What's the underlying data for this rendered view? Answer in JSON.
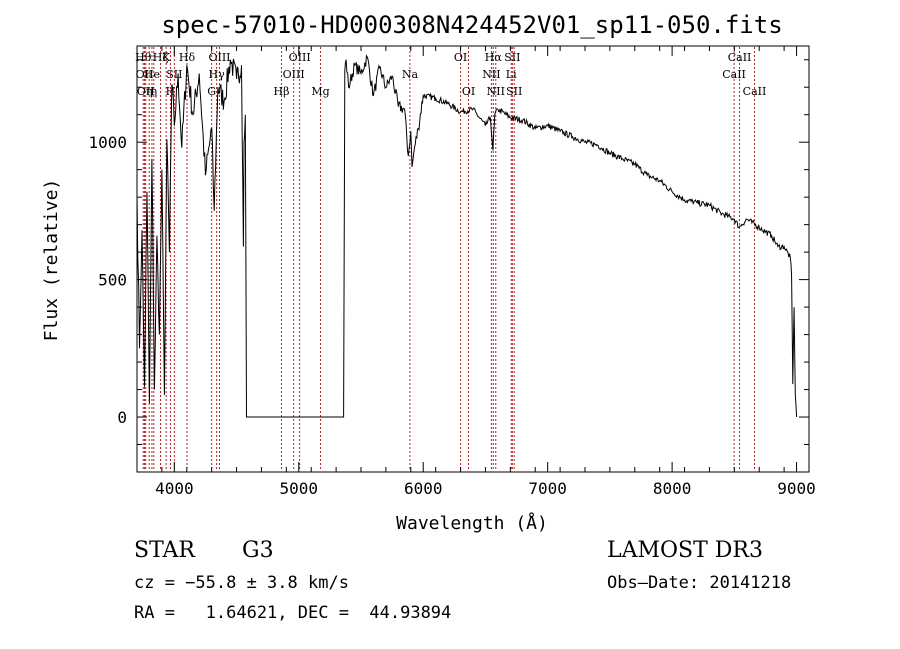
{
  "chart_data": {
    "type": "line",
    "title": "spec-57010-HD000308N424452V01_sp11-050.fits",
    "xlabel": "Wavelength (Å)",
    "ylabel": "Flux (relative)",
    "xlim": [
      3700,
      9100
    ],
    "ylim": [
      -200,
      1350
    ],
    "xticks": [
      4000,
      5000,
      6000,
      7000,
      8000,
      9000
    ],
    "xtick_labels": [
      "4000",
      "5000",
      "6000",
      "7000",
      "8000",
      "9000"
    ],
    "yticks": [
      0,
      500,
      1000
    ],
    "ytick_labels": [
      "0",
      "500",
      "1000"
    ],
    "grid": false,
    "series": [
      {
        "name": "flux",
        "x": [
          3700,
          3720,
          3740,
          3760,
          3780,
          3800,
          3820,
          3840,
          3860,
          3880,
          3900,
          3920,
          3940,
          3960,
          3980,
          4000,
          4030,
          4060,
          4100,
          4150,
          4200,
          4250,
          4300,
          4320,
          4350,
          4400,
          4450,
          4500,
          4540,
          4555,
          4560,
          4570,
          4580,
          5350,
          5360,
          5370,
          5380,
          5400,
          5450,
          5500,
          5550,
          5600,
          5650,
          5700,
          5750,
          5800,
          5850,
          5880,
          5900,
          5910,
          5930,
          5960,
          6000,
          6100,
          6200,
          6300,
          6400,
          6500,
          6540,
          6560,
          6575,
          6600,
          6700,
          6800,
          6900,
          7000,
          7100,
          7200,
          7300,
          7400,
          7500,
          7600,
          7700,
          7800,
          7900,
          8000,
          8100,
          8200,
          8300,
          8400,
          8500,
          8540,
          8560,
          8600,
          8700,
          8800,
          8850,
          8900,
          8950,
          8960,
          8970,
          8980,
          8990,
          9000
        ],
        "y": [
          810,
          250,
          680,
          110,
          820,
          50,
          940,
          100,
          660,
          300,
          900,
          80,
          1010,
          600,
          1210,
          1060,
          1250,
          980,
          1280,
          1100,
          1250,
          880,
          1050,
          750,
          1200,
          1150,
          1300,
          1230,
          1280,
          620,
          1000,
          1100,
          0,
          0,
          0,
          1260,
          1300,
          1200,
          1280,
          1250,
          1310,
          1170,
          1270,
          1200,
          1240,
          1130,
          1120,
          950,
          1040,
          910,
          980,
          1050,
          1170,
          1160,
          1140,
          1110,
          1120,
          1060,
          1090,
          970,
          1100,
          1120,
          1090,
          1080,
          1050,
          1060,
          1040,
          1020,
          1000,
          990,
          960,
          940,
          920,
          880,
          860,
          820,
          790,
          780,
          770,
          740,
          720,
          690,
          700,
          720,
          690,
          660,
          620,
          620,
          580,
          510,
          120,
          400,
          80,
          0
        ]
      }
    ],
    "lines": [
      {
        "wl": 3750,
        "label": "Hθ",
        "row": 1
      },
      {
        "wl": 3760,
        "label": "OII",
        "row": 2
      },
      {
        "wl": 3770,
        "label": "OII",
        "row": 3
      },
      {
        "wl": 3798,
        "label": "η",
        "row": 3
      },
      {
        "wl": 3820,
        "label": "He",
        "row": 2
      },
      {
        "wl": 3835,
        "label": "η",
        "row": 3
      },
      {
        "wl": 3889,
        "label": "Hζ",
        "row": 1
      },
      {
        "wl": 3934,
        "label": "K",
        "row": 1
      },
      {
        "wl": 3969,
        "label": "H",
        "row": 3
      },
      {
        "wl": 4000,
        "label": "SII",
        "row": 2
      },
      {
        "wl": 4102,
        "label": "Hδ",
        "row": 1
      },
      {
        "wl": 4300,
        "label": "G",
        "row": 3
      },
      {
        "wl": 4340,
        "label": "Hγ",
        "row": 2
      },
      {
        "wl": 4363,
        "label": "OIII",
        "row": 1
      },
      {
        "wl": 4861,
        "label": "Hβ",
        "row": 3
      },
      {
        "wl": 4959,
        "label": "OIII",
        "row": 2
      },
      {
        "wl": 5007,
        "label": "OIII",
        "row": 1
      },
      {
        "wl": 5175,
        "label": "Mg",
        "row": 3
      },
      {
        "wl": 5893,
        "label": "Na",
        "row": 2
      },
      {
        "wl": 6300,
        "label": "OI",
        "row": 1
      },
      {
        "wl": 6364,
        "label": "OI",
        "row": 3
      },
      {
        "wl": 6548,
        "label": "NII",
        "row": 2
      },
      {
        "wl": 6563,
        "label": "Hα",
        "row": 1
      },
      {
        "wl": 6583,
        "label": "NII",
        "row": 3
      },
      {
        "wl": 6707,
        "label": "Li",
        "row": 2
      },
      {
        "wl": 6716,
        "label": "SII",
        "row": 1
      },
      {
        "wl": 6731,
        "label": "SII",
        "row": 3
      },
      {
        "wl": 8498,
        "label": "CaII",
        "row": 2
      },
      {
        "wl": 8542,
        "label": "CaII",
        "row": 1
      },
      {
        "wl": 8662,
        "label": "CaII",
        "row": 3
      }
    ]
  },
  "info": {
    "class": "STAR",
    "subclass": "G3",
    "survey": "LAMOST DR3",
    "cz": "cz = −55.8 ± 3.8 km/s",
    "obs_date": "Obs–Date: 20141218",
    "coords": "RA =   1.64621, DEC =  44.93894"
  }
}
